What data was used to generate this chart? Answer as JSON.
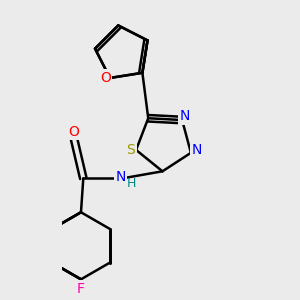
{
  "bg_color": "#ebebeb",
  "bond_color": "#000000",
  "bond_width": 1.8,
  "atom_colors": {
    "O": "#ff0000",
    "N": "#0000ff",
    "S": "#999900",
    "F": "#ff00aa",
    "H": "#008888",
    "C": "#000000"
  },
  "font_size": 10,
  "fig_size": [
    3.0,
    3.0
  ],
  "dpi": 100
}
